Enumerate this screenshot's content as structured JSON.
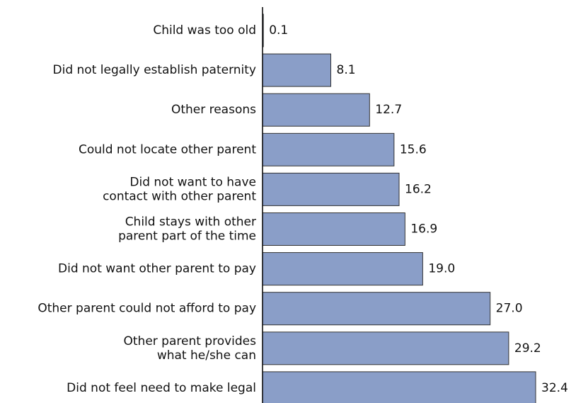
{
  "chart_data": {
    "type": "bar",
    "orientation": "horizontal",
    "categories": [
      "Child was too old",
      "Did not legally establish paternity",
      "Other reasons",
      "Could not locate other parent",
      "Did not want to have\ncontact with other parent",
      "Child stays with other\nparent part of the time",
      "Did not want other parent to pay",
      "Other parent could not afford to pay",
      "Other parent provides\nwhat he/she can",
      "Did not feel need to make legal"
    ],
    "values": [
      0.1,
      8.1,
      12.7,
      15.6,
      16.2,
      16.9,
      19.0,
      27.0,
      29.2,
      32.4
    ],
    "value_labels": [
      "0.1",
      "8.1",
      "12.7",
      "15.6",
      "16.2",
      "16.9",
      "19.0",
      "27.0",
      "29.2",
      "32.4"
    ],
    "color": "#8a9ec8"
  }
}
